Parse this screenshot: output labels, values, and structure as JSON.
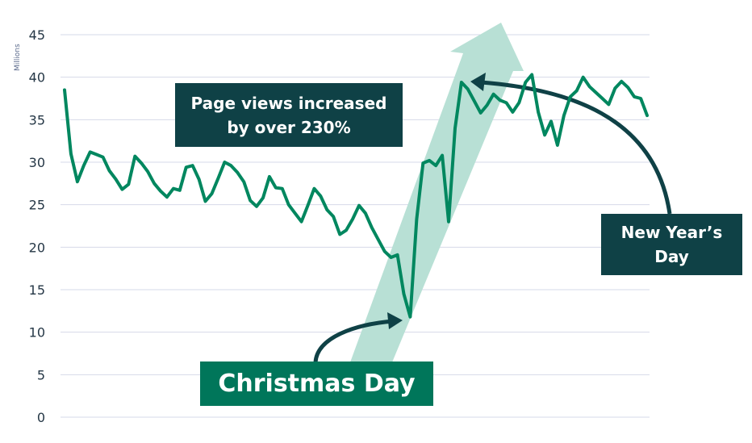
{
  "chart_data": {
    "type": "line",
    "unit_label": "Millions",
    "y_ticks": [
      0,
      5,
      10,
      15,
      20,
      25,
      30,
      35,
      40,
      45
    ],
    "ylim": [
      0,
      45
    ],
    "grid": true,
    "line_color": "#00875f",
    "arrow_fill": "#b8e0d5",
    "callout_dark": "#0f4146",
    "callout_green": "#00765a",
    "values": [
      38.5,
      31.0,
      27.7,
      29.6,
      31.2,
      30.9,
      30.6,
      29.0,
      28.0,
      26.8,
      27.4,
      30.7,
      29.9,
      28.9,
      27.5,
      26.6,
      25.9,
      26.9,
      26.7,
      29.4,
      29.6,
      28.0,
      25.4,
      26.3,
      28.1,
      30.0,
      29.6,
      28.8,
      27.7,
      25.5,
      24.8,
      25.8,
      28.3,
      27.0,
      26.9,
      25.0,
      24.0,
      23.0,
      24.9,
      26.9,
      26.0,
      24.4,
      23.6,
      21.5,
      22.0,
      23.3,
      24.9,
      24.0,
      22.3,
      20.9,
      19.5,
      18.8,
      19.1,
      14.5,
      11.8,
      23.3,
      29.9,
      30.2,
      29.6,
      30.8,
      23.0,
      34.0,
      39.4,
      38.6,
      37.2,
      35.8,
      36.7,
      38.0,
      37.3,
      37.0,
      35.9,
      37.0,
      39.4,
      40.3,
      35.9,
      33.2,
      34.8,
      32.0,
      35.5,
      37.7,
      38.4,
      40.0,
      38.9,
      38.2,
      37.5,
      36.8,
      38.7,
      39.5,
      38.8,
      37.7,
      37.5,
      35.5
    ]
  },
  "annotations": {
    "page_views": [
      "Page views increased",
      "by over 230%"
    ],
    "new_year": [
      "New Year’s",
      "Day"
    ],
    "christmas": "Christmas Day"
  }
}
